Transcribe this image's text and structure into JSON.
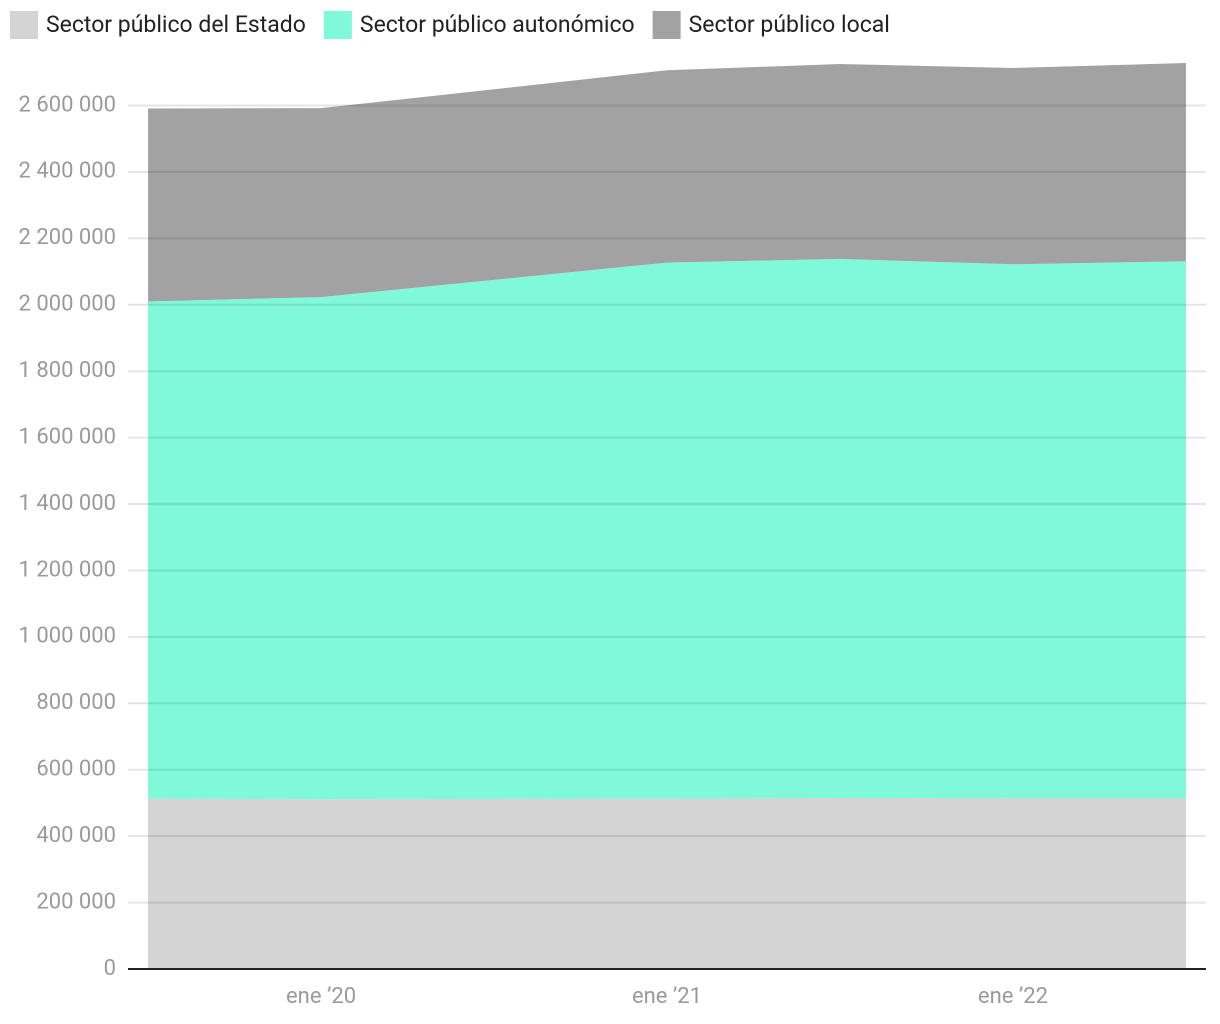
{
  "chart_data": {
    "type": "stacked-area",
    "x": [
      2019.5,
      2020,
      2021,
      2021.5,
      2022,
      2022.5
    ],
    "xlim": [
      2019.442,
      2022.558
    ],
    "xticks": [
      {
        "value": 2020,
        "label": "ene ’20"
      },
      {
        "value": 2021,
        "label": "ene ’21"
      },
      {
        "value": 2022,
        "label": "ene ’22"
      }
    ],
    "ylim": [
      0,
      2740000
    ],
    "yticks": [
      0,
      {
        "value": 200000,
        "label": "200 000"
      },
      {
        "value": 400000,
        "label": "400 000"
      },
      {
        "value": 600000,
        "label": "600 000"
      },
      {
        "value": 800000,
        "label": "800 000"
      },
      {
        "value": 1000000,
        "label": "1 000 000"
      },
      {
        "value": 1200000,
        "label": "1 200 000"
      },
      {
        "value": 1400000,
        "label": "1 400 000"
      },
      {
        "value": 1600000,
        "label": "1 600 000"
      },
      {
        "value": 1800000,
        "label": "1 800 000"
      },
      {
        "value": 2000000,
        "label": "2 000 000"
      },
      {
        "value": 2200000,
        "label": "2 200 000"
      },
      {
        "value": 2400000,
        "label": "2 400 000"
      },
      {
        "value": 2600000,
        "label": "2 600 000"
      }
    ],
    "grid": true,
    "series": [
      {
        "name": "Sector público del Estado",
        "color": "#d4d4d4",
        "values": [
          513000,
          511000,
          513000,
          515000,
          514000,
          514000
        ]
      },
      {
        "name": "Sector público autonómico",
        "color": "#80f9da",
        "values": [
          1497000,
          1512000,
          1614000,
          1623000,
          1608000,
          1617000
        ]
      },
      {
        "name": "Sector público local",
        "color": "#a2a2a2",
        "values": [
          581000,
          569000,
          579000,
          587000,
          591000,
          597000
        ]
      }
    ]
  }
}
